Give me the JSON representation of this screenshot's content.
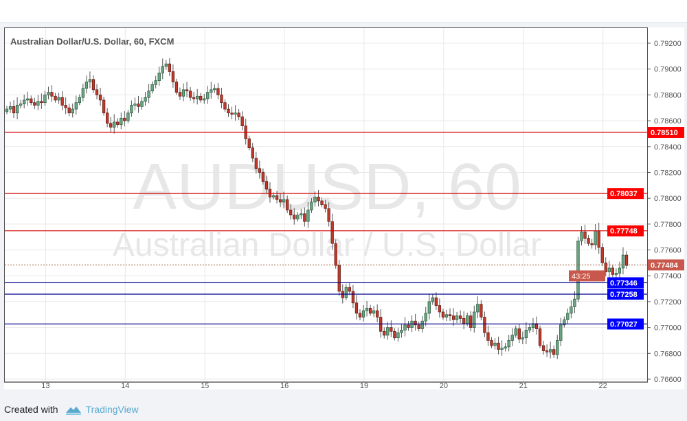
{
  "chart_data": {
    "type": "candlestick",
    "title": "Australian Dollar/U.S. Dollar, 60, FXCM",
    "watermark": {
      "symbol": "AUDUSD, 60",
      "description": "Australian Dollar / U.S. Dollar"
    },
    "ylim": [
      0.7656,
      0.7932
    ],
    "y_ticks": [
      "0.79200",
      "0.79000",
      "0.78800",
      "0.78600",
      "0.78400",
      "0.78200",
      "0.78000",
      "0.77800",
      "0.77600",
      "0.77400",
      "0.77200",
      "0.77000",
      "0.76800",
      "0.76600"
    ],
    "x_ticks": [
      {
        "label": "13",
        "candle": 10
      },
      {
        "label": "14",
        "candle": 33
      },
      {
        "label": "15",
        "candle": 56
      },
      {
        "label": "16",
        "candle": 79
      },
      {
        "label": "19",
        "candle": 102
      },
      {
        "label": "20",
        "candle": 125
      },
      {
        "label": "21",
        "candle": 148
      },
      {
        "label": "22",
        "candle": 171
      }
    ],
    "grid": true,
    "closes": [
      0.7869,
      0.7871,
      0.7866,
      0.7872,
      0.7873,
      0.7876,
      0.7877,
      0.7874,
      0.7872,
      0.7875,
      0.7874,
      0.788,
      0.7882,
      0.7879,
      0.7876,
      0.7878,
      0.7872,
      0.787,
      0.7866,
      0.7869,
      0.7874,
      0.7878,
      0.7885,
      0.789,
      0.7892,
      0.7884,
      0.788,
      0.7876,
      0.7866,
      0.7858,
      0.7855,
      0.7859,
      0.7857,
      0.7862,
      0.786,
      0.7866,
      0.7872,
      0.7873,
      0.7871,
      0.7875,
      0.7878,
      0.7883,
      0.7888,
      0.7891,
      0.7897,
      0.7902,
      0.7904,
      0.7898,
      0.789,
      0.7882,
      0.7879,
      0.7884,
      0.7883,
      0.7878,
      0.7877,
      0.7879,
      0.7876,
      0.7877,
      0.7882,
      0.7884,
      0.7885,
      0.788,
      0.7874,
      0.7869,
      0.7866,
      0.7865,
      0.7866,
      0.7863,
      0.7856,
      0.7846,
      0.7839,
      0.7831,
      0.7823,
      0.782,
      0.7813,
      0.7807,
      0.7801,
      0.7802,
      0.7799,
      0.7797,
      0.7799,
      0.7791,
      0.7787,
      0.7784,
      0.7787,
      0.7788,
      0.7782,
      0.7791,
      0.7797,
      0.7801,
      0.7798,
      0.7795,
      0.7792,
      0.7782,
      0.7765,
      0.7748,
      0.7728,
      0.7723,
      0.7731,
      0.7728,
      0.7719,
      0.7711,
      0.7708,
      0.7713,
      0.7715,
      0.7711,
      0.7713,
      0.7708,
      0.7697,
      0.7694,
      0.77,
      0.7697,
      0.7692,
      0.7696,
      0.7698,
      0.7702,
      0.77,
      0.7705,
      0.7702,
      0.7699,
      0.7705,
      0.7711,
      0.772,
      0.7723,
      0.7717,
      0.7712,
      0.7708,
      0.771,
      0.7709,
      0.7706,
      0.7709,
      0.7707,
      0.7703,
      0.7709,
      0.77,
      0.7712,
      0.7718,
      0.7708,
      0.7696,
      0.769,
      0.7686,
      0.7688,
      0.7683,
      0.7684,
      0.7685,
      0.769,
      0.7694,
      0.7699,
      0.7691,
      0.7692,
      0.7698,
      0.77,
      0.7703,
      0.7699,
      0.7686,
      0.7682,
      0.7681,
      0.7683,
      0.7679,
      0.769,
      0.7702,
      0.7706,
      0.7711,
      0.7716,
      0.7722,
      0.7767,
      0.7774,
      0.7769,
      0.7765,
      0.7764,
      0.7775,
      0.7762,
      0.775,
      0.7743,
      0.7746,
      0.7741,
      0.7742,
      0.7746,
      0.7756,
      0.7748
    ],
    "horizontal_lines": [
      {
        "value": 0.7851,
        "label": "0.78510",
        "color": "#ff0000"
      },
      {
        "value": 0.78037,
        "label": "0.78037",
        "color": "#ff0000"
      },
      {
        "value": 0.77748,
        "label": "0.77748",
        "color": "#ff0000"
      },
      {
        "value": 0.77346,
        "label": "0.77346",
        "color": "#0000ff"
      },
      {
        "value": 0.77258,
        "label": "0.77258",
        "color": "#0000ff"
      },
      {
        "value": 0.77027,
        "label": "0.77027",
        "color": "#0000ff"
      }
    ],
    "last_price": {
      "value": 0.77484,
      "label": "0.77484",
      "countdown": "43:25",
      "color": "#c9584c"
    },
    "colors": {
      "up": "#6ba583",
      "down": "#c0392b",
      "up_border": "#225437",
      "down_border": "#5b1a13"
    }
  },
  "footer": {
    "created_with": "Created with",
    "brand": "TradingView"
  }
}
